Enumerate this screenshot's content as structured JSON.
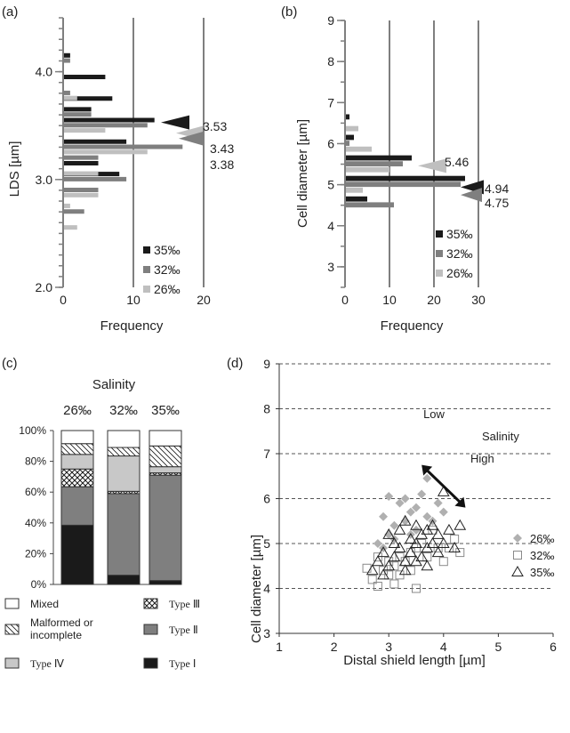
{
  "colors": {
    "s35": "#1a1a1a",
    "s32": "#7f7f7f",
    "s26": "#bfbfbf",
    "axis": "#7f7f7f",
    "typeI": "#1a1a1a",
    "typeII": "#7f7f7f",
    "typeIII": "#ffffff",
    "typeIV": "#c8c8c8",
    "malformed": "#ffffff",
    "mixed": "#ffffff"
  },
  "chart_data": [
    {
      "panel": "(a)",
      "type": "bar",
      "orientation": "horizontal",
      "xlabel": "Frequency",
      "ylabel": "LDS [µm]",
      "xlim": [
        0,
        20
      ],
      "ylim": [
        2.0,
        4.5
      ],
      "xticks": [
        "0",
        "10",
        "20"
      ],
      "yticks": [
        "2.0",
        "3.0",
        "4.0"
      ],
      "categories": [
        2.6,
        2.7,
        2.8,
        2.9,
        3.0,
        3.1,
        3.2,
        3.3,
        3.4,
        3.5,
        3.6,
        3.7,
        3.8,
        3.9,
        4.0,
        4.1
      ],
      "series": [
        {
          "name": "35‰",
          "values": [
            0,
            0,
            0,
            0,
            8,
            5,
            0,
            9,
            0,
            13,
            4,
            7,
            0,
            6,
            0,
            1
          ]
        },
        {
          "name": "32‰",
          "values": [
            0,
            3,
            0,
            5,
            9,
            0,
            5,
            17,
            0,
            12,
            4,
            0,
            1,
            0,
            0,
            1
          ]
        },
        {
          "name": "26‰",
          "values": [
            2,
            0,
            1,
            5,
            0,
            5,
            0,
            12,
            0,
            6,
            0,
            0,
            2,
            0,
            0,
            0
          ]
        }
      ],
      "annotations": [
        {
          "text": "3.53",
          "series": "35‰",
          "y": 3.53
        },
        {
          "text": "3.43",
          "series": "26‰",
          "y": 3.43
        },
        {
          "text": "3.38",
          "series": "32‰",
          "y": 3.38
        }
      ],
      "legend": "bottom-right",
      "grid": "vertical"
    },
    {
      "panel": "(b)",
      "type": "bar",
      "orientation": "horizontal",
      "xlabel": "Frequency",
      "ylabel": "Cell diameter [µm]",
      "xlim": [
        0,
        30
      ],
      "ylim": [
        2.5,
        9
      ],
      "xticks": [
        "0",
        "10",
        "20",
        "30"
      ],
      "yticks": [
        "3",
        "4",
        "5",
        "6",
        "7",
        "8",
        "9"
      ],
      "categories": [
        4.5,
        5.0,
        5.5,
        6.0,
        6.5
      ],
      "series": [
        {
          "name": "35‰",
          "values": [
            5,
            27,
            15,
            2,
            1
          ]
        },
        {
          "name": "32‰",
          "values": [
            11,
            26,
            13,
            1,
            0
          ]
        },
        {
          "name": "26‰",
          "values": [
            0,
            4,
            10,
            6,
            3
          ]
        }
      ],
      "annotations": [
        {
          "text": "5.46",
          "series": "26‰",
          "y": 5.46
        },
        {
          "text": "4.94",
          "series": "35‰",
          "y": 4.94
        },
        {
          "text": "4.75",
          "series": "32‰",
          "y": 4.75
        }
      ],
      "legend": "bottom-right",
      "grid": "vertical"
    },
    {
      "panel": "(c)",
      "type": "bar",
      "stacked": true,
      "title": "Salinity",
      "categories": [
        "26‰",
        "32‰",
        "35‰"
      ],
      "ylim": [
        0,
        100
      ],
      "yticks": [
        "0%",
        "20%",
        "40%",
        "60%",
        "80%",
        "100%"
      ],
      "series": [
        {
          "name": "Type Ⅰ",
          "values": [
            38.5,
            6,
            2.5
          ]
        },
        {
          "name": "Type Ⅱ",
          "values": [
            25,
            53,
            68.5
          ]
        },
        {
          "name": "Type Ⅲ",
          "values": [
            11.5,
            1.5,
            1.5
          ]
        },
        {
          "name": "Type Ⅳ",
          "values": [
            9.5,
            23,
            4
          ]
        },
        {
          "name": "Malformed or incomplete",
          "values": [
            7,
            5.5,
            13.5
          ]
        },
        {
          "name": "Mixed",
          "values": [
            8.5,
            11,
            10
          ]
        }
      ],
      "legend": "bottom"
    },
    {
      "panel": "(d)",
      "type": "scatter",
      "xlabel": "Distal shield length [µm]",
      "ylabel": "Cell diameter [µm]",
      "xlim": [
        1,
        6
      ],
      "ylim": [
        3,
        9
      ],
      "xticks": [
        "1",
        "2",
        "3",
        "4",
        "5",
        "6"
      ],
      "yticks": [
        "3",
        "4",
        "5",
        "6",
        "7",
        "8",
        "9"
      ],
      "grid": "horizontal-dashed",
      "series": [
        {
          "name": "26‰",
          "marker": "diamond",
          "x": [
            2.8,
            2.9,
            3.0,
            3.0,
            3.1,
            3.2,
            3.3,
            3.3,
            3.4,
            3.5,
            3.5,
            3.6,
            3.7,
            3.7,
            3.8,
            3.9,
            4.0,
            2.9,
            3.1,
            3.4
          ],
          "y": [
            5.0,
            5.6,
            6.05,
            5.2,
            5.4,
            5.9,
            6.0,
            5.5,
            5.7,
            5.3,
            5.8,
            6.1,
            6.45,
            5.6,
            5.5,
            5.9,
            5.7,
            4.9,
            5.1,
            5.2
          ]
        },
        {
          "name": "32‰",
          "marker": "square",
          "x": [
            2.6,
            2.7,
            2.8,
            2.9,
            3.0,
            3.0,
            3.1,
            3.2,
            3.2,
            3.3,
            3.4,
            3.4,
            3.5,
            3.5,
            3.6,
            3.7,
            3.8,
            3.9,
            4.0,
            4.1,
            4.2,
            4.3,
            2.8,
            3.1
          ],
          "y": [
            4.45,
            4.2,
            4.05,
            4.4,
            4.6,
            4.3,
            4.5,
            4.7,
            4.3,
            4.6,
            4.4,
            4.8,
            4.0,
            4.9,
            5.0,
            4.7,
            5.3,
            4.9,
            4.6,
            4.9,
            5.1,
            4.8,
            4.7,
            4.1
          ]
        },
        {
          "name": "35‰",
          "marker": "triangle",
          "x": [
            2.7,
            2.8,
            2.9,
            3.0,
            3.0,
            3.1,
            3.1,
            3.2,
            3.2,
            3.3,
            3.3,
            3.4,
            3.4,
            3.5,
            3.5,
            3.6,
            3.6,
            3.7,
            3.7,
            3.8,
            3.8,
            3.9,
            3.9,
            4.0,
            4.0,
            4.1,
            4.2,
            4.3,
            2.9,
            3.3,
            3.5,
            3.7
          ],
          "y": [
            4.4,
            4.6,
            4.8,
            4.5,
            5.2,
            4.7,
            5.0,
            4.9,
            5.3,
            4.6,
            5.5,
            4.8,
            5.1,
            5.0,
            5.4,
            4.7,
            5.2,
            4.9,
            5.3,
            5.0,
            5.4,
            4.8,
            5.2,
            5.0,
            6.15,
            5.3,
            4.9,
            5.4,
            4.3,
            4.4,
            4.6,
            4.5
          ]
        }
      ],
      "annotations": [
        {
          "text": "Low"
        },
        {
          "text": "Salinity"
        },
        {
          "text": "High"
        }
      ],
      "legend": "right"
    }
  ]
}
